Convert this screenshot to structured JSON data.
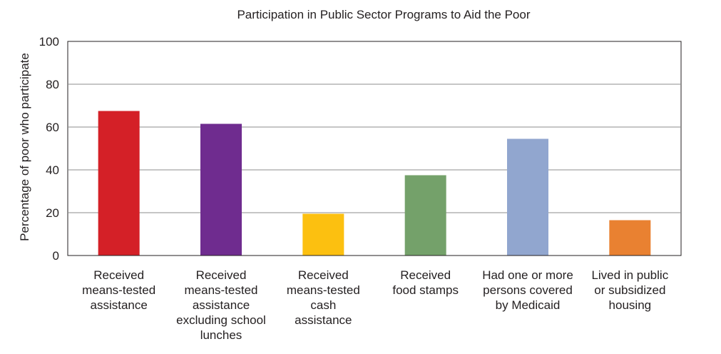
{
  "chart_data": {
    "type": "bar",
    "title": "Participation in Public Sector Programs to Aid the Poor",
    "xlabel": "",
    "ylabel": "Percentage of poor who participate",
    "ylim": [
      0,
      100
    ],
    "yticks": [
      0,
      20,
      40,
      60,
      80,
      100
    ],
    "grid": true,
    "legend": "none",
    "categories": [
      [
        "Received",
        "means-tested",
        "assistance"
      ],
      [
        "Received",
        "means-tested",
        "assistance",
        "excluding school",
        "lunches"
      ],
      [
        "Received",
        "means-tested",
        "cash",
        "assistance"
      ],
      [
        "Received",
        "food stamps"
      ],
      [
        "Had one or more",
        "persons covered",
        "by Medicaid"
      ],
      [
        "Lived in public",
        "or subsidized",
        "housing"
      ]
    ],
    "values": [
      67.5,
      61.5,
      19.5,
      37.5,
      54.5,
      16.5
    ],
    "colors": [
      "#d42027",
      "#6f2c8f",
      "#fcc010",
      "#74a16a",
      "#91a6cf",
      "#e98131"
    ]
  }
}
